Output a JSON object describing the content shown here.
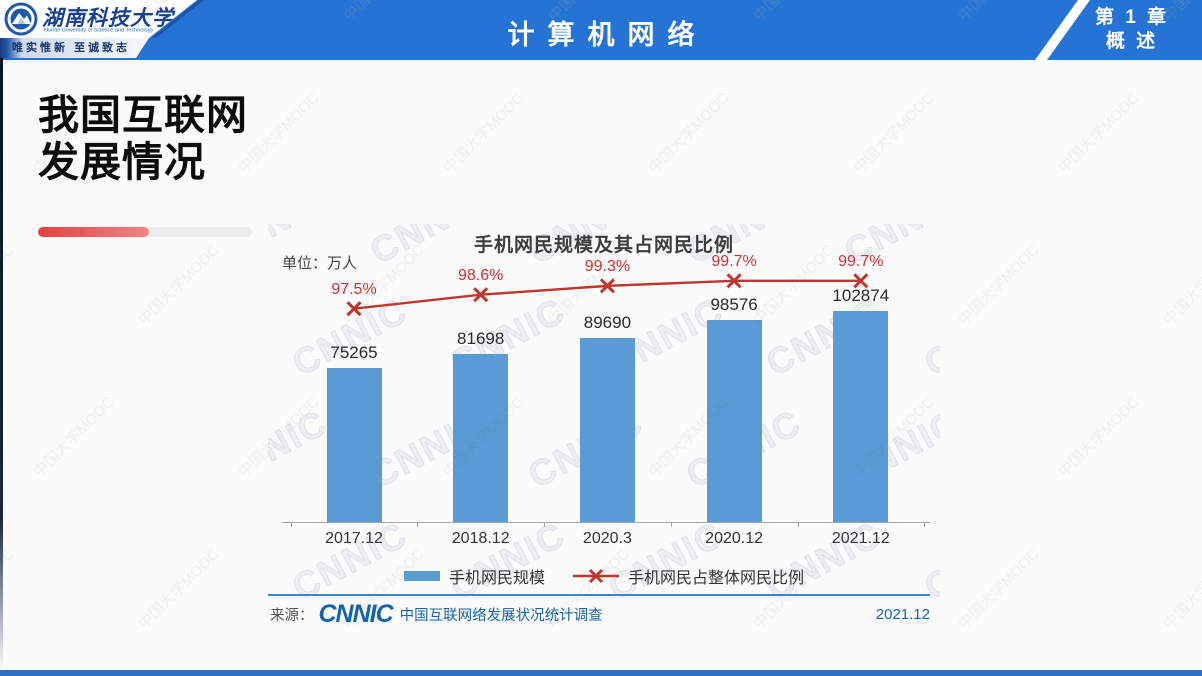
{
  "header": {
    "university_name": "湖南科技大学",
    "university_name_en": "Hunan University of Science and Technology",
    "motto": "唯实惟新  至诚致志",
    "course_title": "计算机网络",
    "chapter_line1": "第 1 章",
    "chapter_line2": "概 述"
  },
  "slide": {
    "title_line1": "我国互联网",
    "title_line2": "发展情况",
    "progress_percent": 52
  },
  "watermarks": {
    "site_text": "中国大学MOOC",
    "chart_text": "CNNIC"
  },
  "chart": {
    "unit_label": "单位：万人",
    "source_prefix": "来源：",
    "source_logo": "CNNIC",
    "source_desc": "中国互联网络发展状况统计调查",
    "source_date": "2021.12"
  },
  "chart_data": {
    "type": "bar",
    "title": "手机网民规模及其占网民比例",
    "ylabel": "万人",
    "categories": [
      "2017.12",
      "2018.12",
      "2020.3",
      "2020.12",
      "2021.12"
    ],
    "series": [
      {
        "name": "手机网民规模",
        "type": "bar",
        "values": [
          75265,
          81698,
          89690,
          98576,
          102874
        ],
        "color": "#5b9bd5"
      },
      {
        "name": "手机网民占整体网民比例",
        "type": "line",
        "values": [
          97.5,
          98.6,
          99.3,
          99.7,
          99.7
        ],
        "unit": "%",
        "color": "#bf362e"
      }
    ],
    "bar_ylim": [
      0,
      110000
    ],
    "line_ylim": [
      97,
      100
    ],
    "legend_position": "bottom",
    "grid": false
  },
  "colors": {
    "header_blue": "#2573d4",
    "bar_blue": "#5b9bd5",
    "line_red": "#bf362e",
    "percent_red": "#cb3232",
    "source_blue": "#1565ad",
    "progress_red": "#e14040",
    "bottom_strip_blue": "#2e6fc4",
    "motto_navy": "#16336e"
  }
}
